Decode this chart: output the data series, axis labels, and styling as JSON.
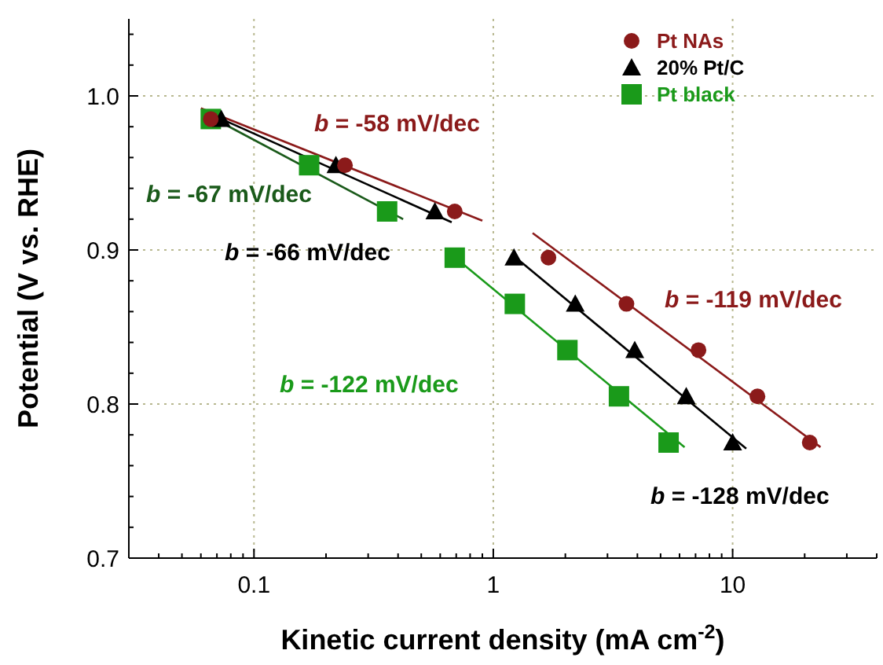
{
  "chart_data": {
    "type": "scatter",
    "xlabel": "Kinetic current density (mA cm$^{-2}$)",
    "ylabel": "Potential (V vs. RHE)",
    "log": "x",
    "grid": true,
    "legend": "top right",
    "xlim": [
      0.03,
      40
    ],
    "xticks": [
      {
        "value": 0.04,
        "label": null
      },
      {
        "value": 0.05,
        "label": null
      },
      {
        "value": 0.06,
        "label": null
      },
      {
        "value": 0.07,
        "label": null
      },
      {
        "value": 0.08,
        "label": null
      },
      {
        "value": 0.09,
        "label": null
      },
      0.1,
      {
        "value": 0.2,
        "label": null
      },
      {
        "value": 0.3,
        "label": null
      },
      {
        "value": 0.4,
        "label": null
      },
      {
        "value": 0.5,
        "label": null
      },
      {
        "value": 0.6,
        "label": null
      },
      {
        "value": 0.7,
        "label": null
      },
      {
        "value": 0.8,
        "label": null
      },
      {
        "value": 0.9,
        "label": null
      },
      1,
      {
        "value": 2,
        "label": null
      },
      {
        "value": 3,
        "label": null
      },
      {
        "value": 4,
        "label": null
      },
      {
        "value": 5,
        "label": null
      },
      {
        "value": 6,
        "label": null
      },
      {
        "value": 7,
        "label": null
      },
      {
        "value": 8,
        "label": null
      },
      {
        "value": 9,
        "label": null
      },
      10,
      {
        "value": 20,
        "label": null
      },
      {
        "value": 30,
        "label": null
      },
      {
        "value": 40,
        "label": null
      }
    ],
    "ylim": [
      0.7,
      1.05
    ],
    "yticks": [
      0.7,
      {
        "value": 0.72,
        "label": null
      },
      {
        "value": 0.74,
        "label": null
      },
      {
        "value": 0.76,
        "label": null
      },
      {
        "value": 0.78,
        "label": null
      },
      0.8,
      {
        "value": 0.82,
        "label": null
      },
      {
        "value": 0.84,
        "label": null
      },
      {
        "value": 0.86,
        "label": null
      },
      {
        "value": 0.88,
        "label": null
      },
      0.9,
      {
        "value": 0.92,
        "label": null
      },
      {
        "value": 0.94,
        "label": null
      },
      {
        "value": 0.96,
        "label": null
      },
      {
        "value": 0.98,
        "label": null
      },
      {
        "value": 1.0,
        "label": "1.0"
      },
      {
        "value": 1.02,
        "label": null
      },
      {
        "value": 1.04,
        "label": null
      }
    ],
    "series": [
      {
        "name": "Pt NAs",
        "color": "#8b1a1a",
        "marker": "circle",
        "x": [
          0.066,
          0.24,
          0.69,
          1.7,
          3.6,
          7.2,
          12.7,
          21
        ],
        "values": [
          0.985,
          0.955,
          0.925,
          0.895,
          0.865,
          0.835,
          0.805,
          0.775
        ]
      },
      {
        "name": "20% Pt/C",
        "color": "#000000",
        "marker": "triangle",
        "x": [
          0.073,
          0.22,
          0.57,
          1.22,
          2.2,
          3.9,
          6.4,
          10
        ],
        "values": [
          0.985,
          0.955,
          0.925,
          0.895,
          0.865,
          0.835,
          0.805,
          0.775
        ]
      },
      {
        "name": "Pt black",
        "color": "#1a9a1a",
        "marker": "square",
        "x": [
          0.066,
          0.17,
          0.36,
          0.69,
          1.23,
          2.04,
          3.35,
          5.4
        ],
        "values": [
          0.985,
          0.955,
          0.925,
          0.895,
          0.865,
          0.835,
          0.805,
          0.775
        ]
      },
      {
        "type": "line",
        "color": "#8b1a1a",
        "marker": "none",
        "x": [
          0.06,
          0.9
        ],
        "values": [
          0.992,
          0.919
        ]
      },
      {
        "type": "line",
        "color": "#1a5a1a",
        "marker": "none",
        "x": [
          0.063,
          0.42
        ],
        "values": [
          0.988,
          0.92
        ]
      },
      {
        "type": "line",
        "color": "#000000",
        "marker": "none",
        "x": [
          0.062,
          0.67
        ],
        "values": [
          0.99,
          0.918
        ]
      },
      {
        "type": "line",
        "color": "#1a9a1a",
        "marker": "none",
        "x": [
          0.67,
          6.3
        ],
        "values": [
          0.897,
          0.772
        ]
      },
      {
        "type": "line",
        "color": "#8b1a1a",
        "marker": "none",
        "x": [
          1.46,
          23.3
        ],
        "values": [
          0.911,
          0.772
        ]
      },
      {
        "type": "line",
        "color": "#000000",
        "marker": "none",
        "x": [
          1.2,
          11.4
        ],
        "values": [
          0.897,
          0.771
        ]
      }
    ],
    "annotations": [
      "b = -58 mV/dec",
      "b = -67 mV/dec",
      "b = -66 mV/dec",
      "b = -122 mV/dec",
      "b = -119 mV/dec",
      "b = -128 mV/dec"
    ]
  }
}
